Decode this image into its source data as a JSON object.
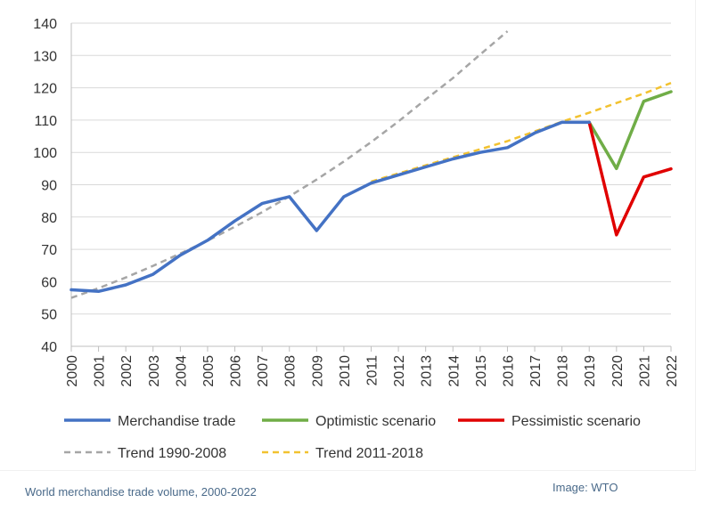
{
  "caption": "World merchandise trade volume, 2000-2022",
  "credit": "Image: WTO",
  "colors": {
    "grid": "#d9d9d9",
    "axis": "#bfbfbf",
    "merchandise": "#4472c4",
    "optimistic": "#70ad47",
    "pessimistic": "#e00000",
    "trend_1990_2008": "#a6a6a6",
    "trend_2011_2018": "#f2c230"
  },
  "chart_data": {
    "type": "line",
    "title": "",
    "xlabel": "",
    "ylabel": "",
    "ylim": [
      40,
      140
    ],
    "yticks": [
      40,
      50,
      60,
      70,
      80,
      90,
      100,
      110,
      120,
      130,
      140
    ],
    "grid": true,
    "legend_position": "bottom",
    "x": [
      "2000",
      "2001",
      "2002",
      "2003",
      "2004",
      "2005",
      "2006",
      "2007",
      "2008",
      "2009",
      "2010",
      "2011",
      "2012",
      "2013",
      "2014",
      "2015",
      "2016",
      "2017",
      "2018",
      "2019",
      "2020",
      "2021",
      "2022"
    ],
    "series": [
      {
        "name": "Merchandise trade",
        "style": "solid",
        "color": "#4472c4",
        "points": [
          {
            "x": "2000",
            "y": 57.5
          },
          {
            "x": "2001",
            "y": 57.0
          },
          {
            "x": "2002",
            "y": 59.0
          },
          {
            "x": "2003",
            "y": 62.3
          },
          {
            "x": "2004",
            "y": 68.2
          },
          {
            "x": "2005",
            "y": 72.8
          },
          {
            "x": "2006",
            "y": 78.8
          },
          {
            "x": "2007",
            "y": 84.2
          },
          {
            "x": "2008",
            "y": 86.3
          },
          {
            "x": "2009",
            "y": 75.8
          },
          {
            "x": "2010",
            "y": 86.3
          },
          {
            "x": "2011",
            "y": 90.5
          },
          {
            "x": "2012",
            "y": 93.0
          },
          {
            "x": "2013",
            "y": 95.5
          },
          {
            "x": "2014",
            "y": 98.0
          },
          {
            "x": "2015",
            "y": 100.0
          },
          {
            "x": "2016",
            "y": 101.5
          },
          {
            "x": "2017",
            "y": 106.0
          },
          {
            "x": "2018",
            "y": 109.3
          },
          {
            "x": "2019",
            "y": 109.3
          }
        ]
      },
      {
        "name": "Optimistic scenario",
        "style": "solid",
        "color": "#70ad47",
        "points": [
          {
            "x": "2019",
            "y": 109.3
          },
          {
            "x": "2020",
            "y": 95.0
          },
          {
            "x": "2021",
            "y": 115.8
          },
          {
            "x": "2022",
            "y": 118.8
          }
        ]
      },
      {
        "name": "Pessimistic scenario",
        "style": "solid",
        "color": "#e00000",
        "points": [
          {
            "x": "2019",
            "y": 109.3
          },
          {
            "x": "2020",
            "y": 74.5
          },
          {
            "x": "2021",
            "y": 92.4
          },
          {
            "x": "2022",
            "y": 94.9
          }
        ]
      },
      {
        "name": "Trend 1990-2008",
        "style": "dashed",
        "color": "#a6a6a6",
        "points": [
          {
            "x": "2000",
            "y": 55.0
          },
          {
            "x": "2001",
            "y": 58.0
          },
          {
            "x": "2002",
            "y": 61.3
          },
          {
            "x": "2003",
            "y": 64.9
          },
          {
            "x": "2004",
            "y": 68.7
          },
          {
            "x": "2005",
            "y": 72.7
          },
          {
            "x": "2006",
            "y": 77.0
          },
          {
            "x": "2007",
            "y": 81.5
          },
          {
            "x": "2008",
            "y": 86.4
          },
          {
            "x": "2009",
            "y": 91.6
          },
          {
            "x": "2010",
            "y": 97.2
          },
          {
            "x": "2011",
            "y": 103.2
          },
          {
            "x": "2012",
            "y": 109.6
          },
          {
            "x": "2013",
            "y": 116.4
          },
          {
            "x": "2014",
            "y": 123.0
          },
          {
            "x": "2015",
            "y": 130.3
          },
          {
            "x": "2016",
            "y": 137.5
          }
        ]
      },
      {
        "name": "Trend 2011-2018",
        "style": "dashed",
        "color": "#f2c230",
        "points": [
          {
            "x": "2011",
            "y": 91.0
          },
          {
            "x": "2012",
            "y": 93.5
          },
          {
            "x": "2013",
            "y": 96.0
          },
          {
            "x": "2014",
            "y": 98.5
          },
          {
            "x": "2015",
            "y": 101.0
          },
          {
            "x": "2016",
            "y": 103.5
          },
          {
            "x": "2017",
            "y": 106.5
          },
          {
            "x": "2018",
            "y": 109.5
          },
          {
            "x": "2019",
            "y": 112.3
          },
          {
            "x": "2020",
            "y": 115.3
          },
          {
            "x": "2021",
            "y": 118.2
          },
          {
            "x": "2022",
            "y": 121.5
          }
        ]
      }
    ],
    "legend": [
      {
        "label": "Merchandise trade",
        "series": 0
      },
      {
        "label": "Optimistic scenario",
        "series": 1
      },
      {
        "label": "Pessimistic scenario",
        "series": 2
      },
      {
        "label": "Trend 1990-2008",
        "series": 3
      },
      {
        "label": "Trend 2011-2018",
        "series": 4
      }
    ]
  }
}
